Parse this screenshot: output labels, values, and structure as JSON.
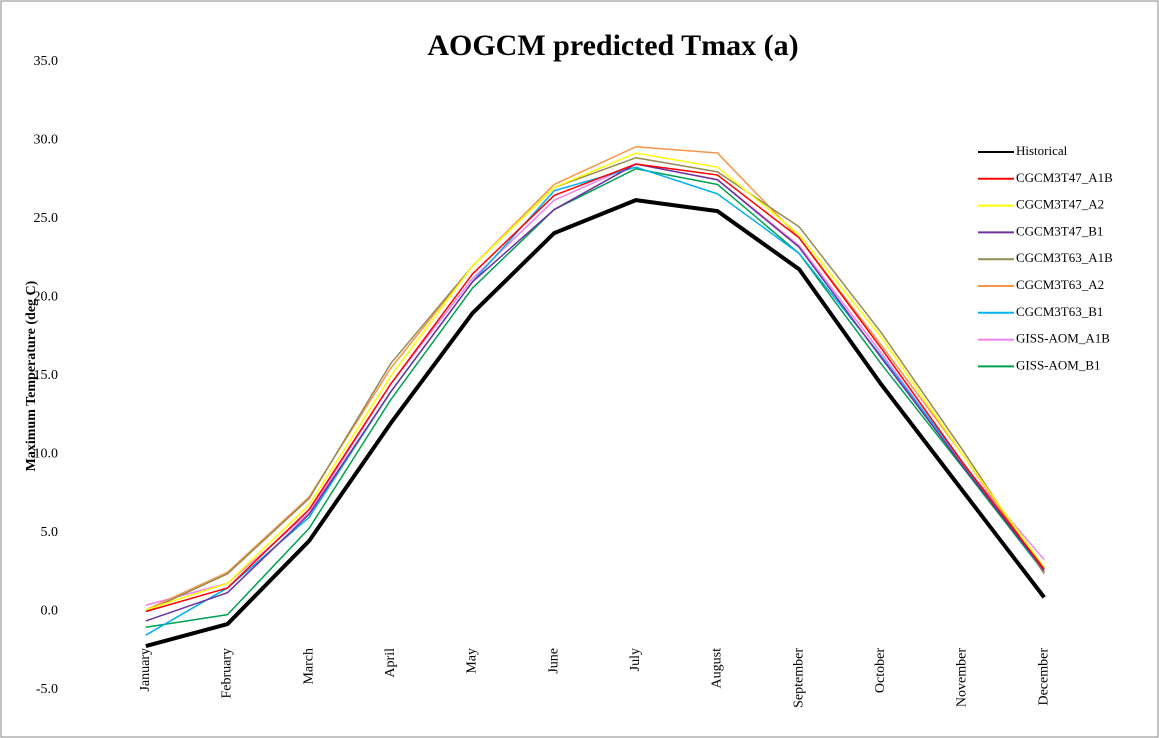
{
  "chart_data": {
    "type": "line",
    "title": "AOGCM predicted Tmax (a)",
    "y_label": "Maximum Temperature (deg C)",
    "categories": [
      "January",
      "February",
      "March",
      "April",
      "May",
      "June",
      "July",
      "August",
      "September",
      "October",
      "November",
      "December"
    ],
    "ylim": [
      -5,
      35
    ],
    "yticks": [
      {
        "value": -5,
        "label": "-5.0"
      },
      {
        "value": 0,
        "label": "0.0"
      },
      {
        "value": 5,
        "label": "5.0"
      },
      {
        "value": 10,
        "label": "10.0"
      },
      {
        "value": 15,
        "label": "15.0"
      },
      {
        "value": 20,
        "label": "20.0"
      },
      {
        "value": 25,
        "label": "25.0"
      },
      {
        "value": 30,
        "label": "30.0"
      },
      {
        "value": 35,
        "label": "35.0"
      }
    ],
    "grid": false,
    "legend": "right",
    "series": [
      {
        "name": "Historical",
        "color": "#000000",
        "width": 4,
        "values": [
          -2.2,
          -0.8,
          4.5,
          12,
          19,
          24.1,
          26.2,
          25.5,
          21.8,
          14.5,
          7.7,
          0.9
        ]
      },
      {
        "name": "CGCM3T47_A1B",
        "color": "#ff0000",
        "width": 1.5,
        "values": [
          0,
          1.5,
          6.5,
          14.5,
          21.5,
          26.5,
          28.5,
          27.8,
          23.8,
          16.8,
          9.5,
          2.7
        ]
      },
      {
        "name": "CGCM3T47_A2",
        "color": "#ffff00",
        "width": 1.5,
        "values": [
          0.1,
          1.8,
          6.8,
          15,
          22,
          27,
          29.2,
          28.3,
          24,
          17.5,
          10,
          2.8
        ]
      },
      {
        "name": "CGCM3T47_B1",
        "color": "#7030a0",
        "width": 1.5,
        "values": [
          -0.6,
          1.2,
          6.2,
          14,
          21,
          25.6,
          28.5,
          27.5,
          23.2,
          16.2,
          9.3,
          2.6
        ]
      },
      {
        "name": "CGCM3T63_A1B",
        "color": "#948a54",
        "width": 1.5,
        "values": [
          0,
          2.4,
          7.2,
          15.8,
          22,
          27,
          28.9,
          28,
          24.5,
          17.8,
          10.3,
          2.4
        ]
      },
      {
        "name": "CGCM3T63_A2",
        "color": "#f79646",
        "width": 1.5,
        "values": [
          0.1,
          2.5,
          7.3,
          15.5,
          22,
          27.2,
          29.6,
          29.2,
          23.8,
          17,
          10,
          2.5
        ]
      },
      {
        "name": "CGCM3T63_B1",
        "color": "#00b0f0",
        "width": 1.5,
        "values": [
          -1.5,
          1.5,
          6,
          14,
          21,
          26.8,
          28.3,
          26.6,
          22.8,
          16.3,
          9.5,
          2.5
        ]
      },
      {
        "name": "GISS-AOM_A1B",
        "color": "#ee82ee",
        "width": 1.5,
        "values": [
          0.4,
          1.8,
          6.3,
          14.5,
          21.2,
          26.2,
          28.5,
          27.5,
          23.3,
          16.5,
          9.4,
          3.3
        ]
      },
      {
        "name": "GISS-AOM_B1",
        "color": "#00a050",
        "width": 1.5,
        "values": [
          -1,
          -0.2,
          5.3,
          13.5,
          20.6,
          25.6,
          28.2,
          27.2,
          22.8,
          15.8,
          9.2,
          2.5
        ]
      }
    ]
  }
}
